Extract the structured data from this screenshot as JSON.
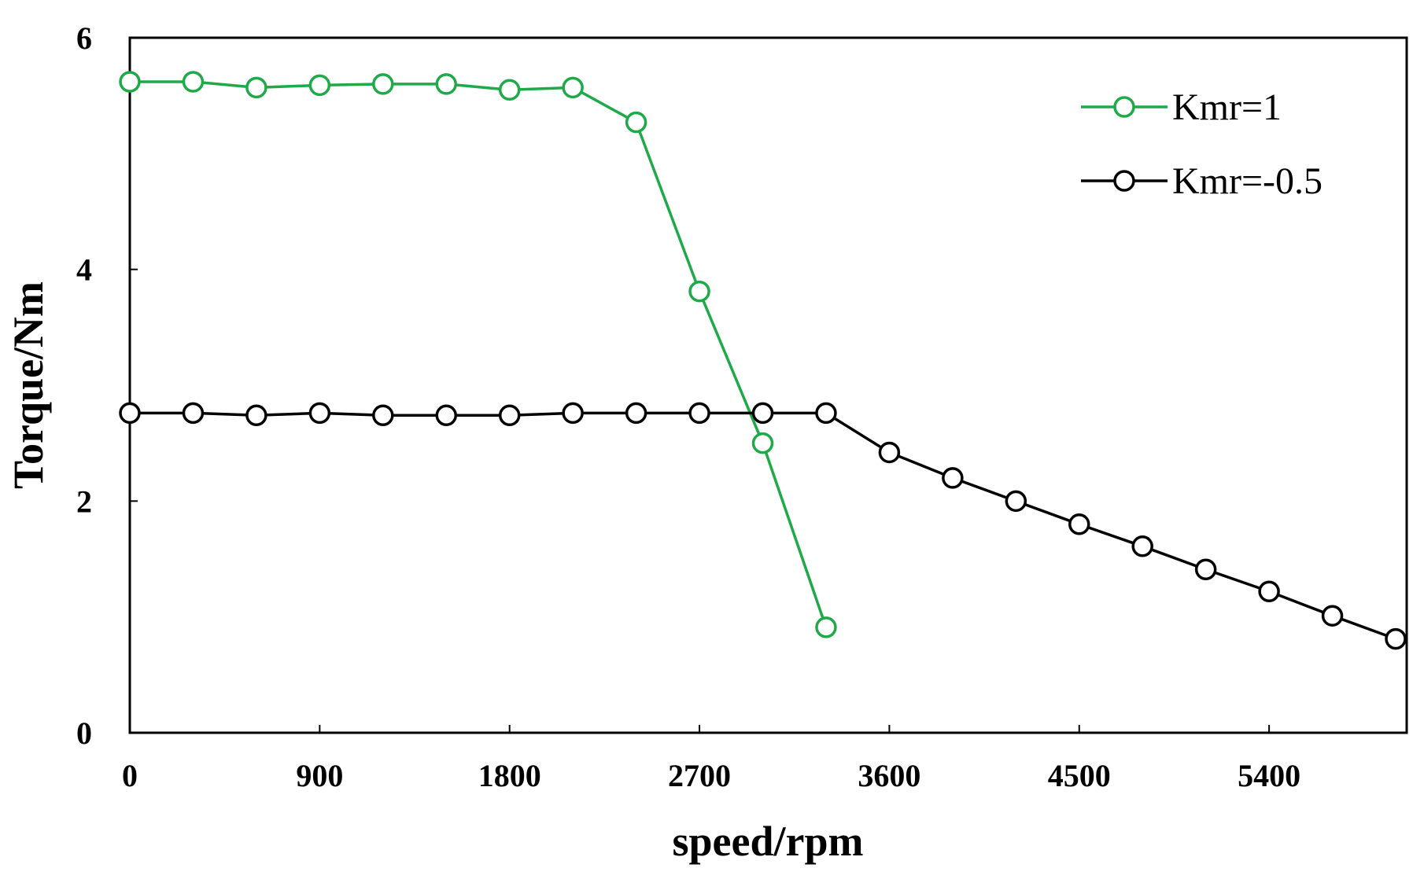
{
  "chart_data": {
    "type": "line",
    "title": "",
    "xlabel": "speed/rpm",
    "ylabel": "Torque/Nm",
    "xlim": [
      0,
      6300
    ],
    "ylim": [
      0,
      6
    ],
    "xticks": [
      0,
      900,
      1800,
      2700,
      3600,
      4500,
      5400
    ],
    "xtick_labels": [
      "0",
      "900",
      "1800",
      "2700",
      "3600",
      "4500",
      "5400"
    ],
    "yticks": [
      0,
      2,
      4,
      6
    ],
    "ytick_labels": [
      "0",
      "2",
      "4",
      "6"
    ],
    "grid": false,
    "legend_position": "top-right",
    "series": [
      {
        "name": "Kmr=1",
        "color": "#1faa4a",
        "marker": "open-circle",
        "x": [
          0,
          300,
          600,
          900,
          1200,
          1500,
          1800,
          2100,
          2400,
          2700,
          3000,
          3300
        ],
        "y": [
          5.62,
          5.62,
          5.57,
          5.59,
          5.6,
          5.6,
          5.55,
          5.57,
          5.27,
          3.81,
          2.5,
          0.91
        ]
      },
      {
        "name": "Kmr=-0.5",
        "color": "#000000",
        "marker": "open-circle",
        "x": [
          0,
          300,
          600,
          900,
          1200,
          1500,
          1800,
          2100,
          2400,
          2700,
          3000,
          3300,
          3600,
          3900,
          4200,
          4500,
          4800,
          5100,
          5400,
          5700,
          6000
        ],
        "y": [
          2.76,
          2.76,
          2.74,
          2.76,
          2.74,
          2.74,
          2.74,
          2.76,
          2.76,
          2.76,
          2.76,
          2.76,
          2.42,
          2.2,
          2.0,
          1.8,
          1.61,
          1.41,
          1.22,
          1.01,
          0.81
        ]
      }
    ]
  }
}
